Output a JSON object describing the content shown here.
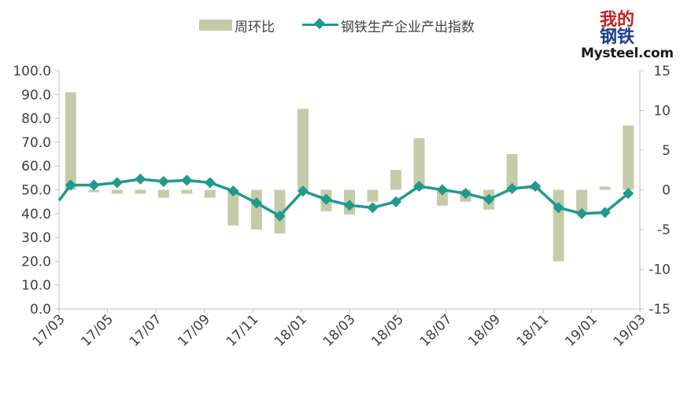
{
  "legend": {
    "bar_label": "周环比",
    "line_label": "钢铁生产企业产出指数"
  },
  "logo": {
    "cn_line1": "我的",
    "cn_line2": "钢铁",
    "en": "Mysteel.com"
  },
  "colors": {
    "bar": "#c5cba9",
    "line": "#1f9a8b",
    "axis": "#bfbfbf",
    "text": "#404040"
  },
  "chart_data": {
    "type": "bar+line",
    "x_tick_labels": [
      "17/03",
      "17/05",
      "17/07",
      "17/09",
      "17/11",
      "18/01",
      "18/03",
      "18/05",
      "18/07",
      "18/09",
      "18/11",
      "19/01",
      "19/03"
    ],
    "left_axis": {
      "min": 0,
      "max": 100,
      "step": 10,
      "ticks": [
        "0.0",
        "10.0",
        "20.0",
        "30.0",
        "40.0",
        "50.0",
        "60.0",
        "70.0",
        "80.0",
        "90.0",
        "100.0"
      ]
    },
    "right_axis": {
      "min": -15,
      "max": 15,
      "step": 5,
      "ticks": [
        "-15",
        "-10",
        "-5",
        "0",
        "5",
        "10",
        "15"
      ]
    },
    "series": [
      {
        "name": "周环比",
        "type": "bar",
        "axis": "right",
        "values": [
          12.3,
          -0.3,
          -0.5,
          -0.5,
          -1.0,
          -0.5,
          -1.0,
          -4.5,
          -5.0,
          -5.5,
          10.2,
          -2.7,
          -3.1,
          -1.5,
          2.5,
          6.5,
          -2.0,
          -1.5,
          -2.5,
          4.5,
          0.4,
          -9.0,
          -3.0,
          0.4,
          8.1
        ]
      },
      {
        "name": "钢铁生产企业产出指数",
        "type": "line",
        "axis": "left",
        "values": [
          45.5,
          52.0,
          52.0,
          53.0,
          54.5,
          53.5,
          54.0,
          53.0,
          49.5,
          44.5,
          39.0,
          49.5,
          46.0,
          43.5,
          42.5,
          45.0,
          51.5,
          50.0,
          48.5,
          46.0,
          50.5,
          51.5,
          42.5,
          40.0,
          40.5,
          48.5
        ]
      }
    ]
  }
}
